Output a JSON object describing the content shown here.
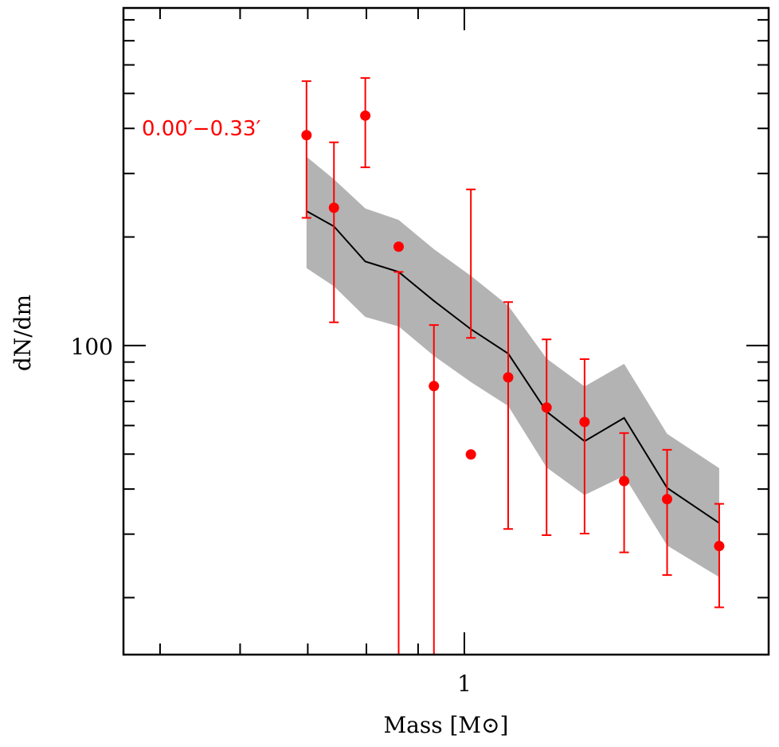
{
  "chart_data": {
    "type": "scatter",
    "xlabel": "Mass [M⊙]",
    "ylabel": "dN/dm",
    "x_scale": "log",
    "y_scale": "log",
    "xlim": [
      0.46,
      2.0
    ],
    "ylim": [
      13.9,
      863
    ],
    "x_tick_labels": [
      {
        "value": 1,
        "label": "1"
      }
    ],
    "y_tick_labels": [
      {
        "value": 100,
        "label": "100"
      }
    ],
    "x_minor_ticks": [
      0.5,
      0.6,
      0.7,
      0.8,
      0.9,
      2
    ],
    "y_minor_ticks": [
      20,
      30,
      40,
      50,
      60,
      70,
      80,
      90,
      200,
      300,
      400,
      500,
      600,
      700,
      800
    ],
    "grid": false,
    "annotation": "0.00′−0.33′",
    "colors": {
      "points": "#ff0000",
      "model": "#000000",
      "band": "#b3b3b3"
    },
    "points": {
      "x": [
        0.698,
        0.743,
        0.798,
        0.861,
        0.933,
        1.015,
        1.105,
        1.206,
        1.315,
        1.439,
        1.587,
        1.787
      ],
      "y": [
        383,
        241,
        434,
        188,
        77.2,
        49.9,
        81.6,
        67.3,
        61.4,
        42.1,
        37.5,
        27.8
      ],
      "err_high": [
        541,
        366,
        552,
        160,
        114,
        271,
        132,
        104,
        91.7,
        57.2,
        51.4,
        36.4
      ],
      "err_low": [
        226,
        116,
        312,
        10,
        10,
        105,
        31,
        29.8,
        30.1,
        26.7,
        23.1,
        18.8
      ]
    },
    "model": {
      "x": [
        0.698,
        0.743,
        0.798,
        0.861,
        0.933,
        1.015,
        1.105,
        1.206,
        1.315,
        1.439,
        1.587,
        1.787
      ],
      "y": [
        236,
        214,
        171,
        160,
        133,
        111,
        95,
        65.6,
        54.3,
        63,
        40.3,
        32.2
      ],
      "band_high": [
        334,
        289,
        240,
        223,
        185,
        156,
        129,
        92,
        77,
        89,
        56.9,
        45.7
      ],
      "band_low": [
        164,
        146,
        120,
        113,
        93.6,
        79.2,
        68,
        45.9,
        38.5,
        43.5,
        27.9,
        22.8
      ]
    }
  }
}
